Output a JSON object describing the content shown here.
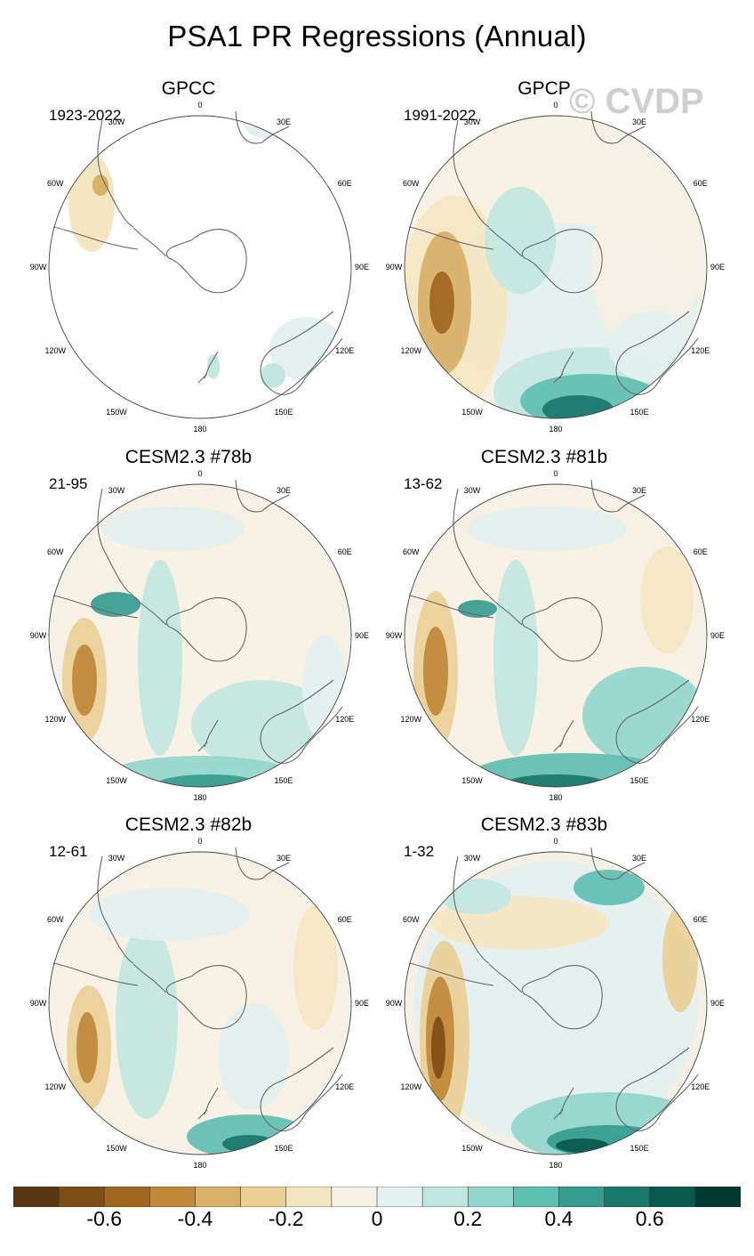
{
  "title": "PSA1 PR Regressions (Annual)",
  "watermark": "© CVDP",
  "panels": [
    {
      "title": "GPCC",
      "period": "1923-2022",
      "pattern": "obs-land"
    },
    {
      "title": "GPCP",
      "period": "1991-2022",
      "pattern": "gpcp"
    },
    {
      "title": "CESM2.3 #78b",
      "period": "21-95",
      "pattern": "m78"
    },
    {
      "title": "CESM2.3 #81b",
      "period": "13-62",
      "pattern": "m81"
    },
    {
      "title": "CESM2.3 #82b",
      "period": "12-61",
      "pattern": "m82"
    },
    {
      "title": "CESM2.3 #83b",
      "period": "1-32",
      "pattern": "m83"
    }
  ],
  "longitude_labels": [
    "0",
    "30E",
    "60E",
    "90E",
    "120E",
    "150E",
    "180",
    "150W",
    "120W",
    "90W",
    "60W",
    "30W"
  ],
  "colorbar": {
    "colors": [
      "#5a3410",
      "#7e4d14",
      "#a0661f",
      "#c08838",
      "#d8b068",
      "#eacf96",
      "#f5e6c2",
      "#f6f1e6",
      "#e4f1f0",
      "#c2e7e1",
      "#93d6cb",
      "#5fbfb1",
      "#369c90",
      "#19786b",
      "#085a4d",
      "#01392f"
    ],
    "tick_labels": [
      "-0.6",
      "-0.4",
      "-0.2",
      "0",
      "0.2",
      "0.4",
      "0.6"
    ],
    "tick_values": [
      -0.6,
      -0.4,
      -0.2,
      0,
      0.2,
      0.4,
      0.6
    ],
    "min": -0.8,
    "max": 0.8
  }
}
